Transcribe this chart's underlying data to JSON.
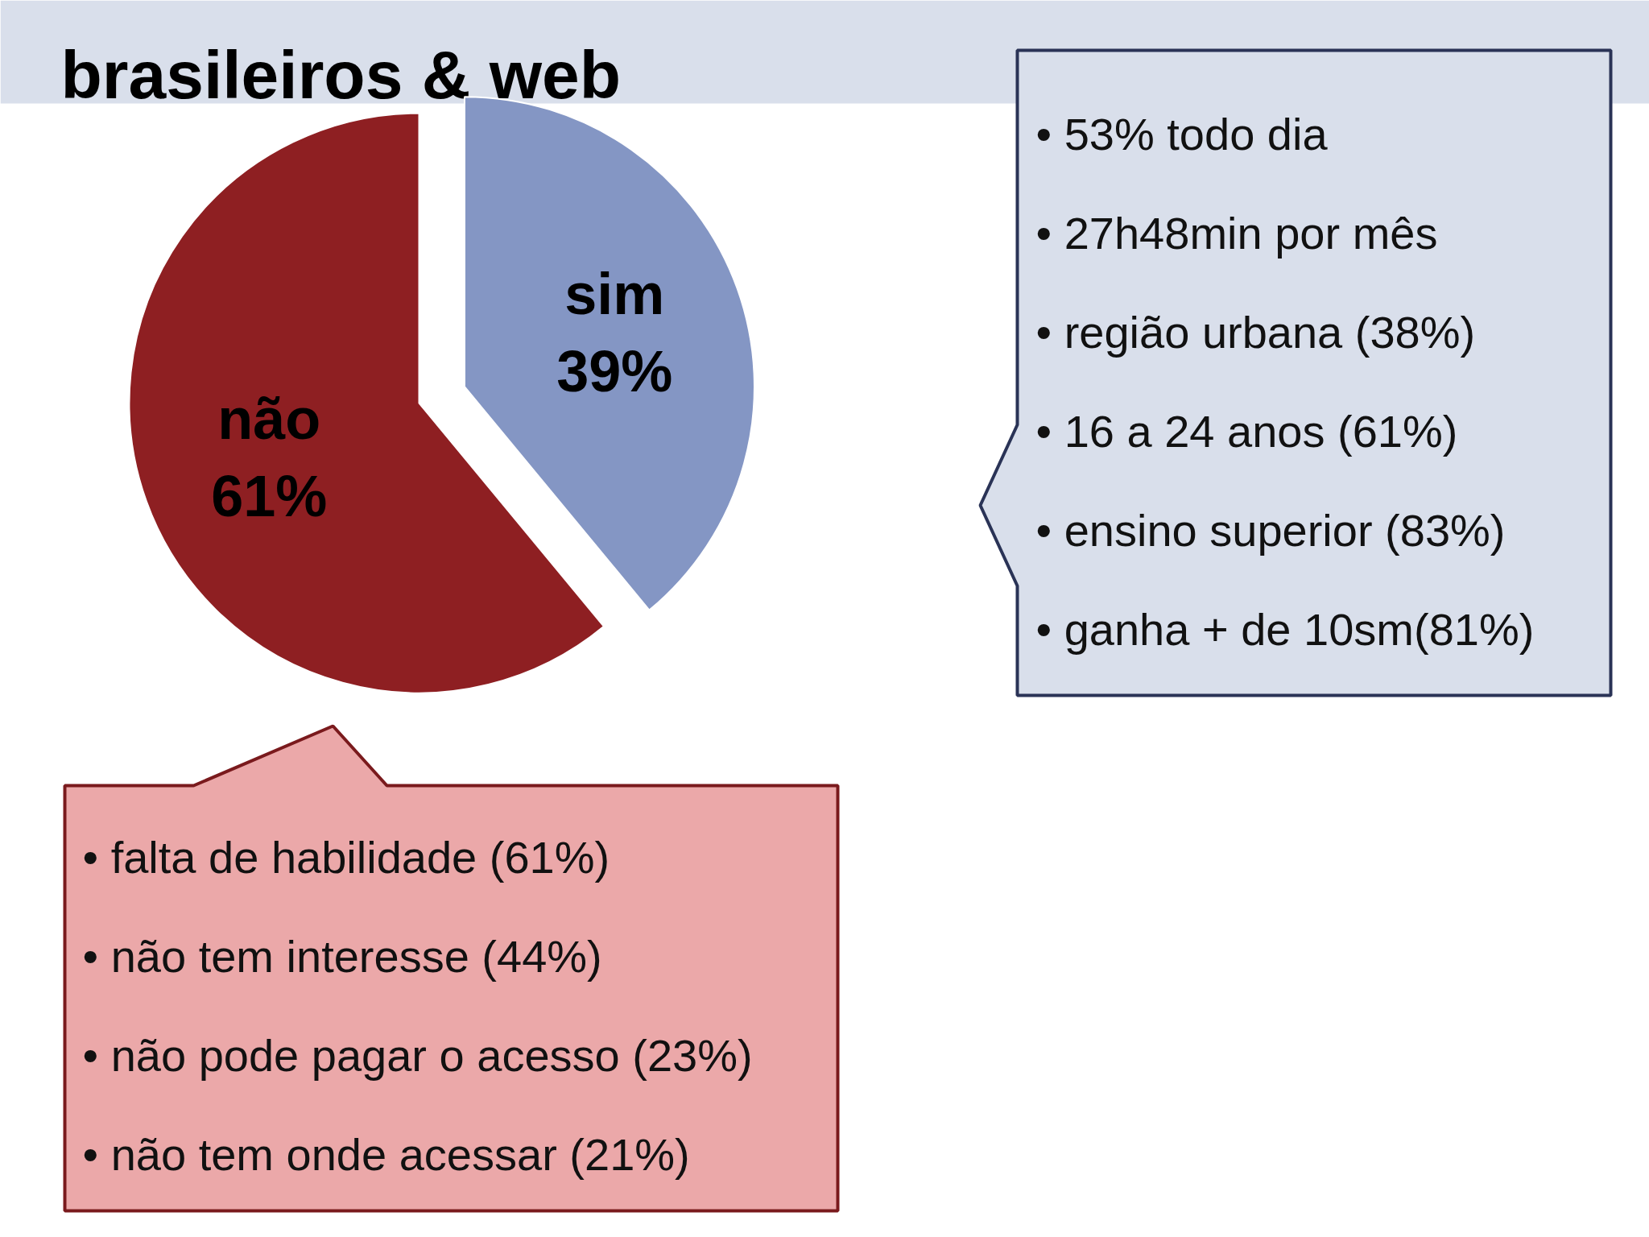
{
  "chart_data": {
    "type": "pie",
    "title": "brasileiros & web",
    "categories": [
      "não",
      "sim"
    ],
    "values": [
      61,
      39
    ],
    "colors": [
      "#8e1f22",
      "#8496c4"
    ],
    "value_labels": [
      "61%",
      "39%"
    ],
    "data_labels": true,
    "annotations": [
      {
        "text": "• 53% todo dia",
        "x": "sim"
      },
      {
        "text": "• 27h48min por mês",
        "x": "sim"
      },
      {
        "text": "• região urbana (38%)",
        "x": "sim"
      },
      {
        "text": "• 16 a 24 anos (61%)",
        "x": "sim"
      },
      {
        "text": "• ensino superior (83%)",
        "x": "sim"
      },
      {
        "text": "• ganha + de 10sm(81%)",
        "x": "sim"
      },
      {
        "text": "• falta de habilidade (61%)",
        "x": "não"
      },
      {
        "text": "• não tem interesse (44%)",
        "x": "não"
      },
      {
        "text": "• não pode pagar o acesso (23%)",
        "x": "não"
      },
      {
        "text": "• não tem onde acessar (21%)",
        "x": "não"
      }
    ]
  }
}
